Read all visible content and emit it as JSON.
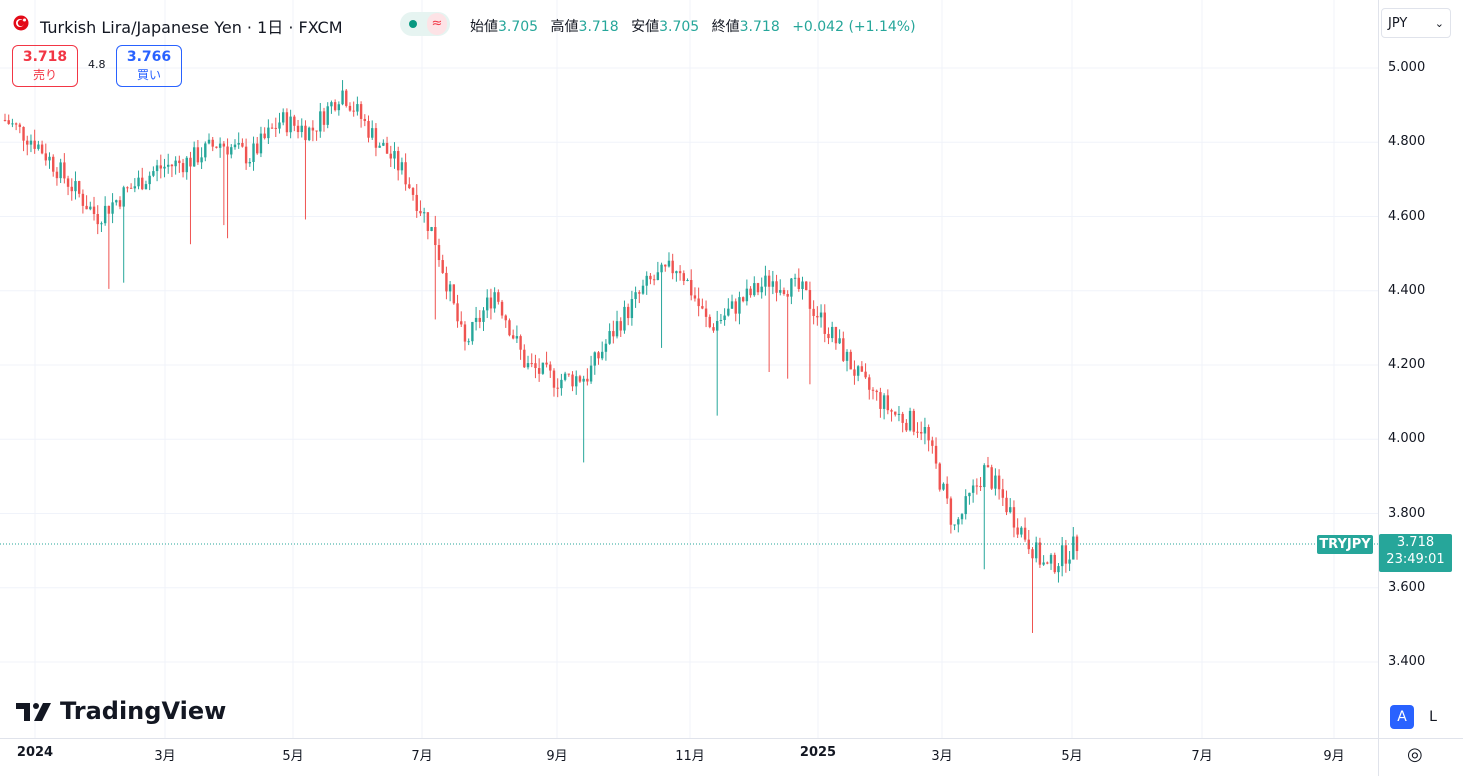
{
  "header": {
    "title": "Turkish Lira/Japanese Yen · 1日 · FXCM",
    "status_wave": "≈",
    "ohlc": [
      {
        "label": "始値",
        "value": "3.705"
      },
      {
        "label": "高値",
        "value": "3.718"
      },
      {
        "label": "安値",
        "value": "3.705"
      },
      {
        "label": "終値",
        "value": "3.718"
      }
    ],
    "change": "+0.042 (+1.14%)"
  },
  "trade": {
    "sell_price": "3.718",
    "sell_label": "売り",
    "spread": "4.8",
    "buy_price": "3.766",
    "buy_label": "買い"
  },
  "currency": {
    "value": "JPY",
    "chevron": "⌄"
  },
  "last": {
    "symbol": "TRYJPY",
    "price": "3.718",
    "countdown": "23:49:01"
  },
  "brand": {
    "name": "TradingView"
  },
  "buttons": {
    "auto": "A",
    "log": "L"
  },
  "settings_icon": "◎",
  "colors": {
    "up": "#26a69a",
    "down": "#ef5350",
    "grid": "#f0f3fa"
  },
  "chart_data": {
    "type": "candlestick",
    "title": "Turkish Lira/Japanese Yen",
    "ylim": [
      3.3,
      5.05
    ],
    "y_ticks": [
      "5.000",
      "4.800",
      "4.600",
      "4.400",
      "4.200",
      "4.000",
      "3.800",
      "3.600",
      "3.400"
    ],
    "x_ticks": [
      "2024",
      "3月",
      "5月",
      "7月",
      "9月",
      "11月",
      "2025",
      "3月",
      "5月",
      "7月",
      "9月"
    ],
    "x_tick_bold": [
      "2024",
      "2025"
    ],
    "series": [
      {
        "date": "2024-01",
        "close": 4.86
      },
      {
        "date": "2024-02",
        "close": 4.8
      },
      {
        "date": "2024-02-20",
        "close": 4.7
      },
      {
        "date": "2024-03",
        "close": 4.6
      },
      {
        "date": "2024-03-20",
        "close": 4.67
      },
      {
        "date": "2024-04",
        "close": 4.73
      },
      {
        "date": "2024-04-20",
        "close": 4.75
      },
      {
        "date": "2024-05",
        "close": 4.8
      },
      {
        "date": "2024-05-20",
        "close": 4.76
      },
      {
        "date": "2024-06",
        "close": 4.86
      },
      {
        "date": "2024-06-20",
        "close": 4.83
      },
      {
        "date": "2024-07",
        "close": 4.94
      },
      {
        "date": "2024-07-15",
        "close": 4.82
      },
      {
        "date": "2024-07-25",
        "close": 4.72
      },
      {
        "date": "2024-08",
        "close": 4.55
      },
      {
        "date": "2024-08-10",
        "close": 4.25
      },
      {
        "date": "2024-08-20",
        "close": 4.4
      },
      {
        "date": "2024-09",
        "close": 4.2
      },
      {
        "date": "2024-09-15",
        "close": 4.16
      },
      {
        "date": "2024-10",
        "close": 4.17
      },
      {
        "date": "2024-10-15",
        "close": 4.31
      },
      {
        "date": "2024-11",
        "close": 4.42
      },
      {
        "date": "2024-11-15",
        "close": 4.47
      },
      {
        "date": "2024-12",
        "close": 4.3
      },
      {
        "date": "2024-12-15",
        "close": 4.37
      },
      {
        "date": "2025-01",
        "close": 4.43
      },
      {
        "date": "2025-01-15",
        "close": 4.4
      },
      {
        "date": "2025-02",
        "close": 4.28
      },
      {
        "date": "2025-02-15",
        "close": 4.15
      },
      {
        "date": "2025-03",
        "close": 4.07
      },
      {
        "date": "2025-03-15",
        "close": 4.03
      },
      {
        "date": "2025-03-20",
        "close": 3.76
      },
      {
        "date": "2025-04",
        "close": 3.92
      },
      {
        "date": "2025-04-10",
        "close": 3.78
      },
      {
        "date": "2025-04-20",
        "close": 3.65
      },
      {
        "date": "2025-05",
        "close": 3.718
      }
    ]
  }
}
